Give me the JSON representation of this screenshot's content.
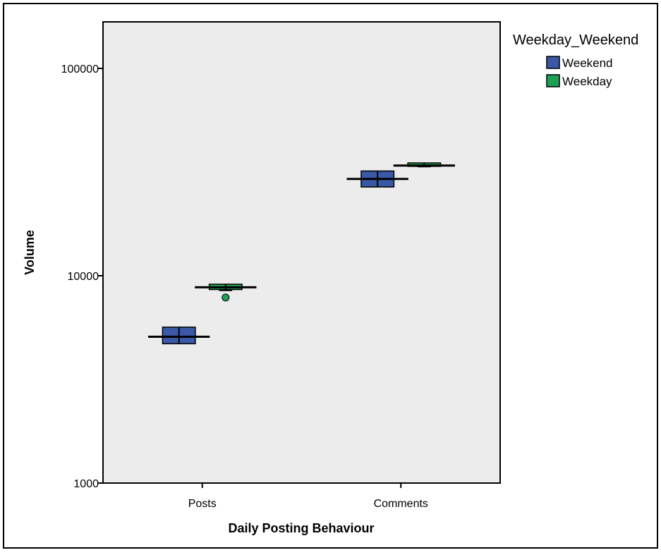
{
  "chart_data": {
    "type": "boxplot",
    "xlabel": "Daily Posting Behaviour",
    "ylabel": "Volume",
    "y_scale": "log",
    "ylim": [
      1000,
      160000
    ],
    "y_ticks": [
      {
        "value": 1000,
        "label": "1000"
      },
      {
        "value": 10000,
        "label": "10000"
      },
      {
        "value": 100000,
        "label": "100000"
      }
    ],
    "categories": [
      "Posts",
      "Comments"
    ],
    "grid": false,
    "legend": {
      "title": "Weekday_Weekend",
      "placement": "right",
      "entries": [
        {
          "label": "Weekend",
          "color": "#3a58a6"
        },
        {
          "label": "Weekday",
          "color": "#1ea157"
        }
      ]
    },
    "series": [
      {
        "name": "Weekend",
        "color": "#3a58a6",
        "boxes": [
          {
            "category": "Posts",
            "min": 4700,
            "q1": 4700,
            "median": 5080,
            "q3": 5650,
            "max": 5650,
            "outliers": []
          },
          {
            "category": "Comments",
            "min": 26800,
            "q1": 26800,
            "median": 29300,
            "q3": 32000,
            "max": 32000,
            "outliers": []
          }
        ]
      },
      {
        "name": "Weekday",
        "color": "#1ea157",
        "boxes": [
          {
            "category": "Posts",
            "min": 8500,
            "q1": 8580,
            "median": 8800,
            "q3": 9100,
            "max": 9100,
            "outliers": [
              7850
            ]
          },
          {
            "category": "Comments",
            "min": 33600,
            "q1": 33700,
            "median": 34000,
            "q3": 35000,
            "max": 35000,
            "outliers": []
          }
        ]
      }
    ]
  }
}
